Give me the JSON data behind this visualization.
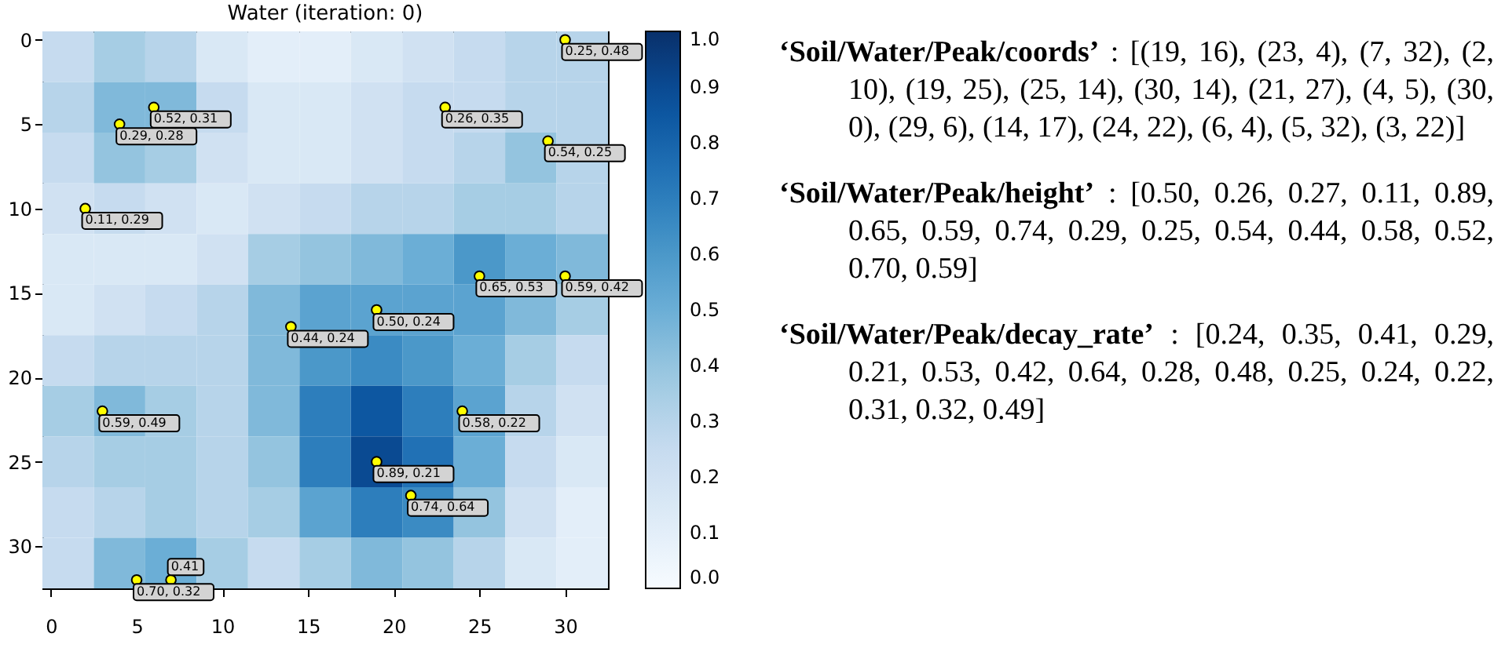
{
  "chart_data": {
    "type": "heatmap",
    "title": "Water (iteration: 0)",
    "x": [
      1,
      4,
      7,
      10,
      13,
      16,
      19,
      22,
      25,
      28,
      31
    ],
    "y": [
      1,
      4,
      7,
      10,
      13,
      16,
      19,
      22,
      25,
      28,
      31
    ],
    "cells": [
      [
        0.25,
        0.35,
        0.3,
        0.15,
        0.1,
        0.1,
        0.15,
        0.2,
        0.25,
        0.3,
        0.3
      ],
      [
        0.3,
        0.45,
        0.45,
        0.25,
        0.15,
        0.15,
        0.2,
        0.25,
        0.25,
        0.3,
        0.3
      ],
      [
        0.25,
        0.4,
        0.35,
        0.2,
        0.15,
        0.15,
        0.2,
        0.25,
        0.3,
        0.4,
        0.3
      ],
      [
        0.2,
        0.25,
        0.2,
        0.15,
        0.2,
        0.25,
        0.3,
        0.3,
        0.35,
        0.35,
        0.3
      ],
      [
        0.15,
        0.15,
        0.15,
        0.2,
        0.35,
        0.4,
        0.45,
        0.5,
        0.6,
        0.5,
        0.45
      ],
      [
        0.15,
        0.2,
        0.25,
        0.3,
        0.45,
        0.55,
        0.55,
        0.55,
        0.55,
        0.45,
        0.35
      ],
      [
        0.25,
        0.3,
        0.3,
        0.3,
        0.45,
        0.6,
        0.65,
        0.6,
        0.5,
        0.35,
        0.25
      ],
      [
        0.35,
        0.45,
        0.35,
        0.3,
        0.45,
        0.7,
        0.85,
        0.7,
        0.55,
        0.3,
        0.2
      ],
      [
        0.3,
        0.35,
        0.35,
        0.3,
        0.4,
        0.7,
        0.9,
        0.75,
        0.5,
        0.25,
        0.15
      ],
      [
        0.25,
        0.3,
        0.35,
        0.3,
        0.35,
        0.55,
        0.7,
        0.65,
        0.4,
        0.2,
        0.1
      ],
      [
        0.25,
        0.45,
        0.5,
        0.35,
        0.25,
        0.35,
        0.45,
        0.4,
        0.3,
        0.15,
        0.1
      ]
    ],
    "xlim": [
      -0.5,
      32.5
    ],
    "ylim": [
      32.5,
      -0.5
    ],
    "xticks": [
      0,
      5,
      10,
      15,
      20,
      25,
      30
    ],
    "yticks": [
      0,
      5,
      10,
      15,
      20,
      25,
      30
    ],
    "clim": [
      0,
      1
    ],
    "cticks": [
      {
        "value": 0,
        "label": "0.0"
      },
      {
        "value": 0.1,
        "label": "0.1"
      },
      {
        "value": 0.2,
        "label": "0.2"
      },
      {
        "value": 0.3,
        "label": "0.3"
      },
      {
        "value": 0.4,
        "label": "0.4"
      },
      {
        "value": 0.5,
        "label": "0.5"
      },
      {
        "value": 0.6,
        "label": "0.6"
      },
      {
        "value": 0.7,
        "label": "0.7"
      },
      {
        "value": 0.8,
        "label": "0.8"
      },
      {
        "value": 0.9,
        "label": "0.9"
      },
      {
        "value": 1,
        "label": "1.0"
      }
    ],
    "marker": "circle",
    "series": [
      {
        "type": "scatter",
        "color": "#ffff00",
        "x": [
          19,
          23,
          7,
          2,
          19,
          25,
          30,
          21,
          4,
          30,
          29,
          14,
          24,
          6,
          5,
          3
        ],
        "values": [
          16,
          4,
          32,
          10,
          25,
          14,
          14,
          27,
          5,
          0,
          6,
          17,
          22,
          4,
          32,
          22
        ]
      }
    ],
    "annotations": [
      {
        "text": "0.50, 0.24",
        "x": 19,
        "y": 16
      },
      {
        "text": "0.26, 0.35",
        "x": 23,
        "y": 4
      },
      {
        "text": "0.41",
        "x": 7,
        "y": 32
      },
      {
        "text": "0.11, 0.29",
        "x": 2,
        "y": 10
      },
      {
        "text": "0.89, 0.21",
        "x": 19,
        "y": 25
      },
      {
        "text": "0.65, 0.53",
        "x": 25,
        "y": 14
      },
      {
        "text": "0.59, 0.42",
        "x": 30,
        "y": 14
      },
      {
        "text": "0.74, 0.64",
        "x": 21,
        "y": 27
      },
      {
        "text": "0.29, 0.28",
        "x": 4,
        "y": 5
      },
      {
        "text": "0.25, 0.48",
        "x": 30,
        "y": 0
      },
      {
        "text": "0.54, 0.25",
        "x": 29,
        "y": 6
      },
      {
        "text": "0.44, 0.24",
        "x": 14,
        "y": 17
      },
      {
        "text": "0.58, 0.22",
        "x": 24,
        "y": 22
      },
      {
        "text": "0.52, 0.31",
        "x": 6,
        "y": 4
      },
      {
        "text": "0.70, 0.32",
        "x": 5,
        "y": 32
      },
      {
        "text": "0.59, 0.49",
        "x": 3,
        "y": 22
      },
      "‘Soil/Water/Peak/coords’ : [(19, 16), (23, 4), (7, 32), (2, 10), (19, 25), (25, 14), (30, 14), (21, 27), (4, 5), (30, 0), (29, 6), (14, 17), (24, 22), (6, 4), (5, 32), (3, 22)]",
      "‘Soil/Water/Peak/height’ : [0.50, 0.26, 0.27, 0.11, 0.89, 0.65, 0.59, 0.74, 0.29, 0.25, 0.54, 0.44, 0.58, 0.52, 0.70, 0.59]",
      "‘Soil/Water/Peak/decay_rate’ : [0.24, 0.35, 0.41, 0.29, 0.21, 0.53, 0.42, 0.64, 0.28, 0.48, 0.25, 0.24, 0.22, 0.31, 0.32, 0.49]"
    ]
  }
}
